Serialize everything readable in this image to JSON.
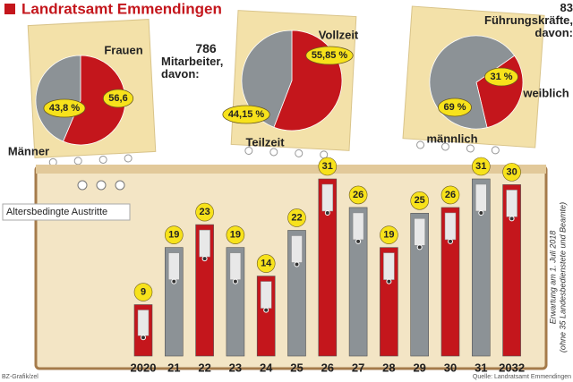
{
  "header": {
    "title": "Landratsamt Emmendingen"
  },
  "chart_data": [
    {
      "type": "pie",
      "count": 786,
      "title": "Mitarbeiter, davon:",
      "categories": [
        "Frauen",
        "Männer"
      ],
      "values": [
        56.6,
        43.8
      ],
      "value_labels": [
        "56,6",
        "43,8 %"
      ],
      "colors": [
        "#c4161c",
        "#8c9296"
      ]
    },
    {
      "type": "pie",
      "categories": [
        "Vollzeit",
        "Teilzeit"
      ],
      "values": [
        55.85,
        44.15
      ],
      "value_labels": [
        "55,85 %",
        "44,15 %"
      ],
      "colors": [
        "#c4161c",
        "#8c9296"
      ]
    },
    {
      "type": "pie",
      "count": 83,
      "title": "Führungskräfte, davon:",
      "categories": [
        "weiblich",
        "männlich"
      ],
      "values": [
        31,
        69
      ],
      "value_labels": [
        "31 %",
        "69 %"
      ],
      "colors": [
        "#c4161c",
        "#8c9296"
      ]
    },
    {
      "type": "bar",
      "title": "Altersbedingte Austritte",
      "categories": [
        "2020",
        "21",
        "22",
        "23",
        "24",
        "25",
        "26",
        "27",
        "28",
        "29",
        "30",
        "31",
        "2032"
      ],
      "values": [
        9,
        19,
        23,
        19,
        14,
        22,
        31,
        26,
        19,
        25,
        26,
        31,
        30
      ],
      "colors": [
        "#c4161c",
        "#8c9296",
        "#c4161c",
        "#8c9296",
        "#c4161c",
        "#8c9296",
        "#c4161c",
        "#8c9296",
        "#c4161c",
        "#8c9296",
        "#c4161c",
        "#8c9296",
        "#c4161c"
      ],
      "note": [
        "Erwartung am 1. Juli 2018",
        "(ohne 35 Landesbedienstete und Beamte)"
      ]
    }
  ],
  "footer": {
    "credit": "BZ-Grafik/zel",
    "source": "Quelle: Landratsamt Emmendingen"
  }
}
